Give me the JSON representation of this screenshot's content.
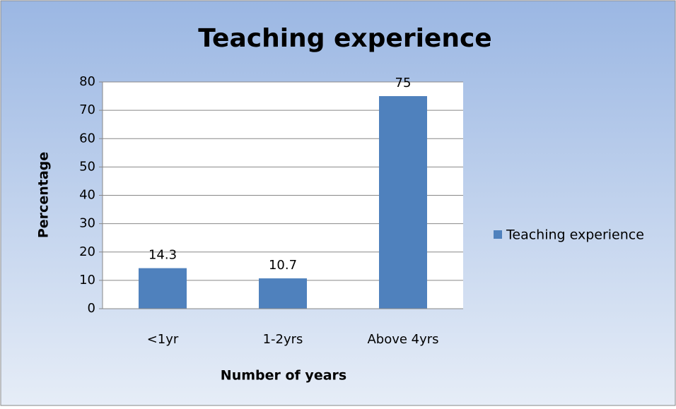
{
  "chart_data": {
    "type": "bar",
    "title": "Teaching experience",
    "x_label": "Number of years",
    "y_label": "Percentage",
    "categories": [
      "<1yr",
      "1-2yrs",
      "Above 4yrs"
    ],
    "series": [
      {
        "name": "Teaching experience",
        "color": "#4f81bd",
        "values": [
          14.3,
          10.7,
          75
        ]
      }
    ],
    "ylim": [
      0,
      80
    ],
    "yticks": [
      0,
      10,
      20,
      30,
      40,
      50,
      60,
      70,
      80
    ],
    "grid": true,
    "legend": "right"
  }
}
